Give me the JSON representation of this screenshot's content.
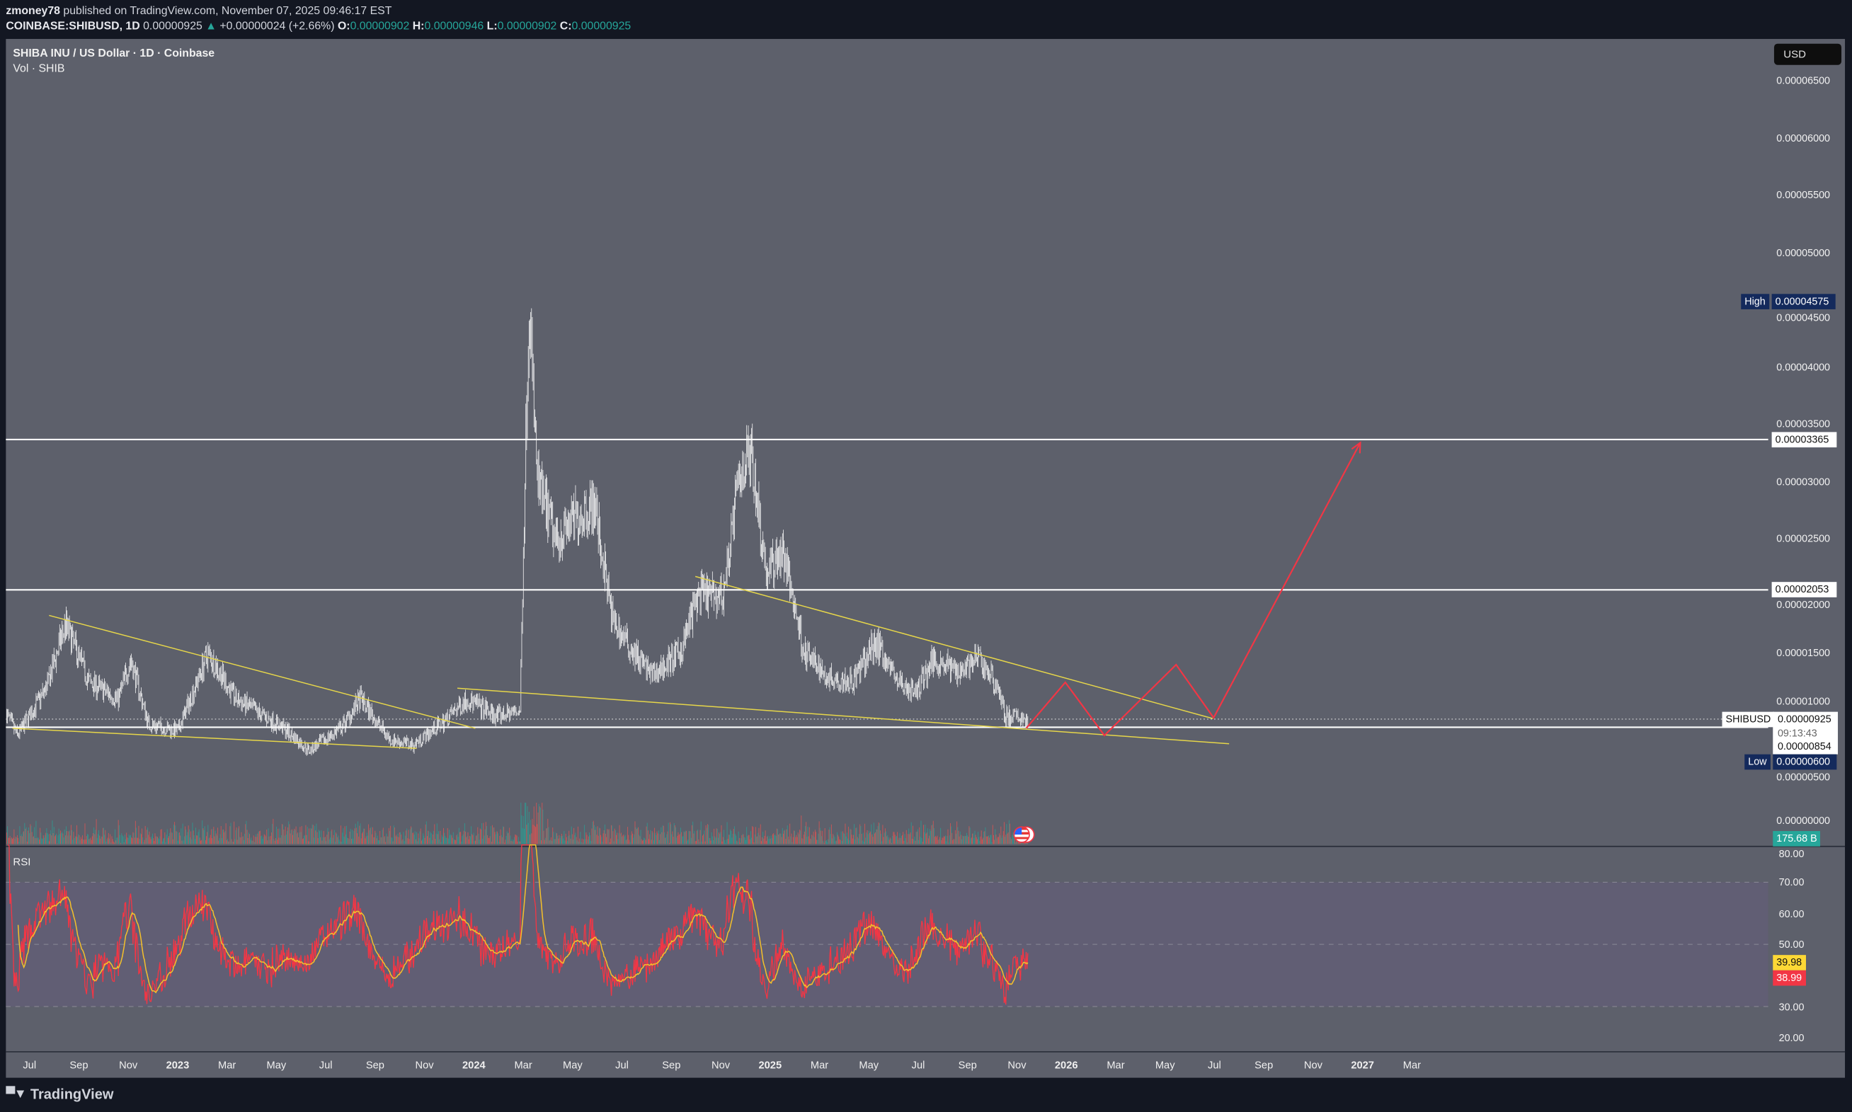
{
  "header": {
    "publisher": "zmoney78",
    "published_text": "published on TradingView.com, November 07, 2025 09:46:17 EST",
    "symbol": "COINBASE:SHIBUSD, 1D",
    "last_price": "0.00000925",
    "change": "+0.00000024 (+2.66%)",
    "o_label": "O:",
    "o_value": "0.00000902",
    "h_label": "H:",
    "h_value": "0.00000946",
    "l_label": "L:",
    "l_value": "0.00000902",
    "c_label": "C:",
    "c_value": "0.00000925"
  },
  "legend": {
    "title": "SHIBA INU / US Dollar · 1D · Coinbase",
    "volume": "Vol · SHIB",
    "rsi": "RSI"
  },
  "price_axis": {
    "currency_button": "USD",
    "ticks": [
      "0.00006500",
      "0.00006000",
      "0.00005500",
      "0.00005000",
      "0.00004500",
      "0.00004000",
      "0.00003500",
      "0.00003000",
      "0.00002500",
      "0.00002000",
      "0.00001500",
      "0.00001000",
      "0.00000500",
      "0.00000000"
    ],
    "high_label": "High",
    "high_value": "0.00004575",
    "low_label": "Low",
    "low_value": "0.00000600",
    "symbol_tag": "SHIBUSD",
    "current_price": "0.00000925",
    "countdown": "09:13:43",
    "line_854": "0.00000854",
    "line_2053": "0.00002053",
    "line_3365": "0.00003365",
    "volume_value": "175.68 B"
  },
  "rsi_axis": {
    "ticks": [
      "80.00",
      "70.00",
      "60.00",
      "50.00",
      "30.00",
      "20.00"
    ],
    "rsi_ma_value": "39.98",
    "rsi_value": "38.99"
  },
  "time_axis": [
    {
      "label": "Jul",
      "year": false
    },
    {
      "label": "Sep",
      "year": false
    },
    {
      "label": "Nov",
      "year": false
    },
    {
      "label": "2023",
      "year": true
    },
    {
      "label": "Mar",
      "year": false
    },
    {
      "label": "May",
      "year": false
    },
    {
      "label": "Jul",
      "year": false
    },
    {
      "label": "Sep",
      "year": false
    },
    {
      "label": "Nov",
      "year": false
    },
    {
      "label": "2024",
      "year": true
    },
    {
      "label": "Mar",
      "year": false
    },
    {
      "label": "May",
      "year": false
    },
    {
      "label": "Jul",
      "year": false
    },
    {
      "label": "Sep",
      "year": false
    },
    {
      "label": "Nov",
      "year": false
    },
    {
      "label": "2025",
      "year": true
    },
    {
      "label": "Mar",
      "year": false
    },
    {
      "label": "May",
      "year": false
    },
    {
      "label": "Jul",
      "year": false
    },
    {
      "label": "Sep",
      "year": false
    },
    {
      "label": "Nov",
      "year": false
    },
    {
      "label": "2026",
      "year": true
    },
    {
      "label": "Mar",
      "year": false
    },
    {
      "label": "May",
      "year": false
    },
    {
      "label": "Jul",
      "year": false
    },
    {
      "label": "Sep",
      "year": false
    },
    {
      "label": "Nov",
      "year": false
    },
    {
      "label": "2027",
      "year": true
    },
    {
      "label": "Mar",
      "year": false
    }
  ],
  "footer": {
    "brand": "TradingView"
  },
  "colors": {
    "background": "#131722",
    "pane": "#5d606b",
    "rsi_band": "#615e74",
    "up": "#26a69a",
    "down": "#ef5350",
    "price": "#ffffff",
    "trendline": "#e6d64a",
    "projection": "#f23645",
    "rsi": "#f23645",
    "rsi_ma": "#f5c02a",
    "tag_blue": "#142a5c",
    "rsi_ma_tag": "#fdd835",
    "rsi_tag": "#f23645"
  },
  "chart_data": {
    "type": "candlestick",
    "symbol": "SHIBUSD",
    "interval": "1D",
    "price_unit_scale": "values in 0.00001 USD",
    "ylim": [
      0,
      6.6
    ],
    "xlim": [
      "2022-06-01",
      "2027-04-15"
    ],
    "price_path": [
      [
        "2022-06-03",
        0.97
      ],
      [
        "2022-06-16",
        0.78
      ],
      [
        "2022-07-22",
        1.2
      ],
      [
        "2022-08-14",
        1.75
      ],
      [
        "2022-09-12",
        1.25
      ],
      [
        "2022-10-18",
        1.1
      ],
      [
        "2022-11-02",
        1.45
      ],
      [
        "2022-11-24",
        0.88
      ],
      [
        "2022-12-30",
        0.82
      ],
      [
        "2023-02-05",
        1.5
      ],
      [
        "2023-03-11",
        1.1
      ],
      [
        "2023-05-08",
        0.85
      ],
      [
        "2023-06-09",
        0.65
      ],
      [
        "2023-07-19",
        0.85
      ],
      [
        "2023-08-11",
        1.1
      ],
      [
        "2023-09-16",
        0.75
      ],
      [
        "2023-10-15",
        0.7
      ],
      [
        "2023-11-21",
        0.9
      ],
      [
        "2023-12-19",
        1.1
      ],
      [
        "2024-01-25",
        0.95
      ],
      [
        "2024-02-23",
        1.0
      ],
      [
        "2024-03-01",
        3.4
      ],
      [
        "2024-03-05",
        4.575
      ],
      [
        "2024-03-15",
        3.0
      ],
      [
        "2024-04-06",
        2.5
      ],
      [
        "2024-05-05",
        2.7
      ],
      [
        "2024-05-24",
        2.8
      ],
      [
        "2024-06-15",
        1.8
      ],
      [
        "2024-07-02",
        1.6
      ],
      [
        "2024-08-03",
        1.3
      ],
      [
        "2024-09-06",
        1.5
      ],
      [
        "2024-09-28",
        2.0
      ],
      [
        "2024-10-29",
        2.0
      ],
      [
        "2024-11-17",
        3.0
      ],
      [
        "2024-12-02",
        3.3
      ],
      [
        "2024-12-21",
        2.2
      ],
      [
        "2025-01-10",
        2.4
      ],
      [
        "2025-01-25",
        1.9
      ],
      [
        "2025-02-06",
        1.5
      ],
      [
        "2025-03-05",
        1.3
      ],
      [
        "2025-04-06",
        1.25
      ],
      [
        "2025-05-05",
        1.6
      ],
      [
        "2025-06-01",
        1.25
      ],
      [
        "2025-06-22",
        1.15
      ],
      [
        "2025-07-14",
        1.45
      ],
      [
        "2025-08-12",
        1.35
      ],
      [
        "2025-09-08",
        1.45
      ],
      [
        "2025-10-02",
        1.2
      ],
      [
        "2025-10-10",
        0.95
      ],
      [
        "2025-11-07",
        0.925
      ]
    ],
    "horizontal_lines": [
      3.365,
      2.053,
      0.854
    ],
    "current_price": 0.925,
    "trendlines": [
      [
        [
          "2022-07-25",
          1.83
        ],
        [
          "2023-12-30",
          0.845
        ]
      ],
      [
        [
          "2022-06-10",
          0.845
        ],
        [
          "2023-10-19",
          0.67
        ]
      ],
      [
        [
          "2023-12-08",
          1.195
        ],
        [
          "2026-07-12",
          0.71
        ]
      ],
      [
        [
          "2024-09-25",
          2.17
        ],
        [
          "2026-06-22",
          0.93
        ]
      ]
    ],
    "projection": [
      [
        "2025-11-05",
        0.845
      ],
      [
        "2025-12-23",
        1.246
      ],
      [
        "2026-02-09",
        0.783
      ],
      [
        "2026-05-08",
        1.4
      ],
      [
        "2026-06-23",
        0.937
      ],
      [
        "2026-12-20",
        3.337
      ]
    ],
    "rsi": {
      "length": 14,
      "ma_length": 14,
      "ylim": [
        20,
        80
      ],
      "band": [
        30,
        70
      ],
      "midline": 50
    }
  }
}
